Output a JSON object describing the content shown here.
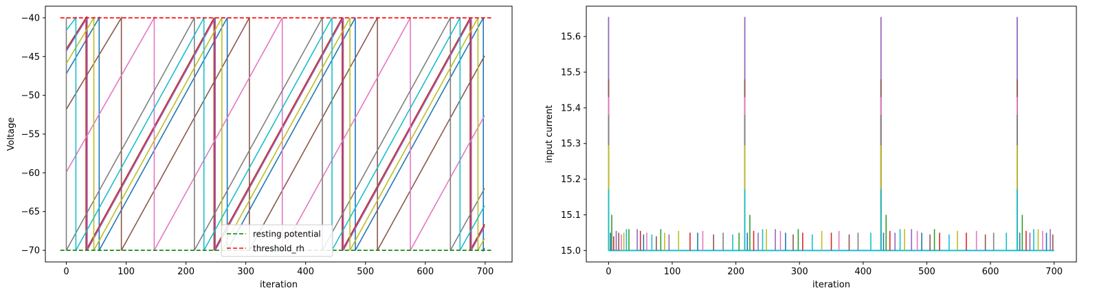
{
  "chart_data": [
    {
      "type": "line",
      "xlabel": "iteration",
      "ylabel": "Voltage",
      "xlim": [
        -35,
        745
      ],
      "ylim": [
        -71.5,
        -38.5
      ],
      "xticks": [
        0,
        100,
        200,
        300,
        400,
        500,
        600,
        700
      ],
      "yticks": [
        -70,
        -65,
        -60,
        -55,
        -50,
        -45,
        -40
      ],
      "ytick_labels": [
        "−70",
        "−65",
        "−60",
        "−55",
        "−50",
        "−45",
        "−40"
      ],
      "legend": {
        "placement": "bottom-center",
        "entries": [
          {
            "label": "resting potential",
            "color": "#008000",
            "style": "dashed"
          },
          {
            "label": "threshold_rh",
            "color": "#ff0000",
            "style": "dashed"
          }
        ]
      },
      "reference_lines": [
        {
          "name": "resting potential",
          "y": -70,
          "x": [
            -10,
            710
          ],
          "color": "#008000"
        },
        {
          "name": "threshold_rh",
          "y": -40,
          "x": [
            -10,
            710
          ],
          "color": "#ff0000"
        }
      ],
      "series": [
        {
          "color": "#1f77b4",
          "start_v": -47.2,
          "period": 214,
          "reset_iters": [
            55,
            269,
            483,
            697
          ]
        },
        {
          "color": "#ff7f0e",
          "start_v": -44.2,
          "period": 214,
          "reset_iters": [
            34,
            248,
            462,
            676
          ]
        },
        {
          "color": "#2ca02c",
          "start_v": -44.0,
          "period": 214,
          "reset_iters": [
            33,
            247,
            461,
            675
          ]
        },
        {
          "color": "#d62728",
          "start_v": -44.1,
          "period": 214,
          "reset_iters": [
            33,
            247,
            461,
            675
          ]
        },
        {
          "color": "#9467bd",
          "start_v": -44.3,
          "period": 214,
          "reset_iters": [
            35,
            249,
            463,
            677
          ]
        },
        {
          "color": "#8c564b",
          "start_v": -51.8,
          "period": 214,
          "reset_iters": [
            92,
            306,
            520
          ]
        },
        {
          "color": "#e377c2",
          "start_v": -59.9,
          "period": 214,
          "reset_iters": [
            147,
            361,
            575
          ]
        },
        {
          "color": "#7f7f7f",
          "start_v": -70.0,
          "period": 214,
          "reset_iters": [
            0,
            214,
            428,
            642
          ]
        },
        {
          "color": "#bcbd22",
          "start_v": -45.9,
          "period": 214,
          "reset_iters": [
            46,
            260,
            474,
            688
          ]
        },
        {
          "color": "#17becf",
          "start_v": -41.6,
          "period": 214,
          "reset_iters": [
            16,
            230,
            444,
            658
          ]
        }
      ]
    },
    {
      "type": "line",
      "xlabel": "iteration",
      "ylabel": "input current",
      "xlim": [
        -35,
        735
      ],
      "ylim": [
        14.968,
        15.685
      ],
      "xticks": [
        0,
        100,
        200,
        300,
        400,
        500,
        600,
        700
      ],
      "yticks": [
        15.0,
        15.1,
        15.2,
        15.3,
        15.4,
        15.5,
        15.6
      ],
      "ytick_labels": [
        "15.0",
        "15.1",
        "15.2",
        "15.3",
        "15.4",
        "15.5",
        "15.6"
      ],
      "baseline": 15.0,
      "large_spikes": [
        {
          "x": 0,
          "levels": [
            {
              "color": "#9467bd",
              "y": 15.655
            },
            {
              "color": "#8c564b",
              "y": 15.48
            },
            {
              "color": "#e377c2",
              "y": 15.43
            },
            {
              "color": "#7f7f7f",
              "y": 15.38
            },
            {
              "color": "#bcbd22",
              "y": 15.295
            },
            {
              "color": "#17becf",
              "y": 15.172
            }
          ]
        },
        {
          "x": 214,
          "levels": [
            {
              "color": "#9467bd",
              "y": 15.655
            },
            {
              "color": "#8c564b",
              "y": 15.48
            },
            {
              "color": "#e377c2",
              "y": 15.43
            },
            {
              "color": "#7f7f7f",
              "y": 15.38
            },
            {
              "color": "#bcbd22",
              "y": 15.295
            },
            {
              "color": "#17becf",
              "y": 15.172
            }
          ]
        },
        {
          "x": 428,
          "levels": [
            {
              "color": "#9467bd",
              "y": 15.655
            },
            {
              "color": "#8c564b",
              "y": 15.48
            },
            {
              "color": "#e377c2",
              "y": 15.43
            },
            {
              "color": "#7f7f7f",
              "y": 15.38
            },
            {
              "color": "#bcbd22",
              "y": 15.295
            },
            {
              "color": "#17becf",
              "y": 15.172
            }
          ]
        },
        {
          "x": 642,
          "levels": [
            {
              "color": "#9467bd",
              "y": 15.655
            },
            {
              "color": "#8c564b",
              "y": 15.48
            },
            {
              "color": "#e377c2",
              "y": 15.43
            },
            {
              "color": "#7f7f7f",
              "y": 15.38
            },
            {
              "color": "#bcbd22",
              "y": 15.295
            },
            {
              "color": "#17becf",
              "y": 15.172
            }
          ]
        }
      ],
      "small_spikes": [
        {
          "x": 3,
          "y": 15.05,
          "color": "#1f77b4"
        },
        {
          "x": 5,
          "y": 15.1,
          "color": "#2ca02c"
        },
        {
          "x": 8,
          "y": 15.04,
          "color": "#d62728"
        },
        {
          "x": 12,
          "y": 15.055,
          "color": "#9467bd"
        },
        {
          "x": 16,
          "y": 15.05,
          "color": "#8c564b"
        },
        {
          "x": 20,
          "y": 15.045,
          "color": "#e377c2"
        },
        {
          "x": 24,
          "y": 15.05,
          "color": "#bcbd22"
        },
        {
          "x": 28,
          "y": 15.06,
          "color": "#17becf"
        },
        {
          "x": 32,
          "y": 15.06,
          "color": "#2ca02c"
        },
        {
          "x": 45,
          "y": 15.06,
          "color": "#9467bd"
        },
        {
          "x": 50,
          "y": 15.055,
          "color": "#d62728"
        },
        {
          "x": 55,
          "y": 15.045,
          "color": "#1f77b4"
        },
        {
          "x": 60,
          "y": 15.05,
          "color": "#e377c2"
        },
        {
          "x": 68,
          "y": 15.045,
          "color": "#17becf"
        },
        {
          "x": 75,
          "y": 15.04,
          "color": "#8c564b"
        },
        {
          "x": 82,
          "y": 15.06,
          "color": "#2ca02c"
        },
        {
          "x": 88,
          "y": 15.05,
          "color": "#bcbd22"
        },
        {
          "x": 95,
          "y": 15.045,
          "color": "#9467bd"
        },
        {
          "x": 110,
          "y": 15.055,
          "color": "#bcbd22"
        },
        {
          "x": 128,
          "y": 15.05,
          "color": "#d62728"
        },
        {
          "x": 140,
          "y": 15.05,
          "color": "#1f77b4"
        },
        {
          "x": 148,
          "y": 15.055,
          "color": "#e377c2"
        },
        {
          "x": 165,
          "y": 15.045,
          "color": "#8c564b"
        },
        {
          "x": 180,
          "y": 15.05,
          "color": "#7f7f7f"
        },
        {
          "x": 195,
          "y": 15.045,
          "color": "#17becf"
        },
        {
          "x": 205,
          "y": 15.05,
          "color": "#2ca02c"
        },
        {
          "x": 218,
          "y": 15.05,
          "color": "#1f77b4"
        },
        {
          "x": 222,
          "y": 15.1,
          "color": "#2ca02c"
        },
        {
          "x": 228,
          "y": 15.055,
          "color": "#d62728"
        },
        {
          "x": 235,
          "y": 15.05,
          "color": "#9467bd"
        },
        {
          "x": 242,
          "y": 15.06,
          "color": "#17becf"
        },
        {
          "x": 248,
          "y": 15.06,
          "color": "#bcbd22"
        },
        {
          "x": 262,
          "y": 15.06,
          "color": "#9467bd"
        },
        {
          "x": 270,
          "y": 15.055,
          "color": "#e377c2"
        },
        {
          "x": 278,
          "y": 15.05,
          "color": "#1f77b4"
        },
        {
          "x": 290,
          "y": 15.045,
          "color": "#8c564b"
        },
        {
          "x": 298,
          "y": 15.06,
          "color": "#2ca02c"
        },
        {
          "x": 305,
          "y": 15.05,
          "color": "#d62728"
        },
        {
          "x": 320,
          "y": 15.045,
          "color": "#17becf"
        },
        {
          "x": 335,
          "y": 15.055,
          "color": "#bcbd22"
        },
        {
          "x": 350,
          "y": 15.05,
          "color": "#d62728"
        },
        {
          "x": 362,
          "y": 15.055,
          "color": "#e377c2"
        },
        {
          "x": 378,
          "y": 15.045,
          "color": "#8c564b"
        },
        {
          "x": 392,
          "y": 15.05,
          "color": "#7f7f7f"
        },
        {
          "x": 412,
          "y": 15.05,
          "color": "#17becf"
        },
        {
          "x": 432,
          "y": 15.05,
          "color": "#1f77b4"
        },
        {
          "x": 436,
          "y": 15.1,
          "color": "#2ca02c"
        },
        {
          "x": 442,
          "y": 15.055,
          "color": "#d62728"
        },
        {
          "x": 450,
          "y": 15.05,
          "color": "#9467bd"
        },
        {
          "x": 458,
          "y": 15.06,
          "color": "#17becf"
        },
        {
          "x": 465,
          "y": 15.06,
          "color": "#bcbd22"
        },
        {
          "x": 476,
          "y": 15.06,
          "color": "#9467bd"
        },
        {
          "x": 485,
          "y": 15.055,
          "color": "#e377c2"
        },
        {
          "x": 492,
          "y": 15.05,
          "color": "#1f77b4"
        },
        {
          "x": 505,
          "y": 15.045,
          "color": "#8c564b"
        },
        {
          "x": 512,
          "y": 15.06,
          "color": "#2ca02c"
        },
        {
          "x": 520,
          "y": 15.05,
          "color": "#d62728"
        },
        {
          "x": 535,
          "y": 15.045,
          "color": "#17becf"
        },
        {
          "x": 548,
          "y": 15.055,
          "color": "#bcbd22"
        },
        {
          "x": 562,
          "y": 15.05,
          "color": "#d62728"
        },
        {
          "x": 578,
          "y": 15.055,
          "color": "#e377c2"
        },
        {
          "x": 592,
          "y": 15.045,
          "color": "#8c564b"
        },
        {
          "x": 605,
          "y": 15.05,
          "color": "#7f7f7f"
        },
        {
          "x": 625,
          "y": 15.05,
          "color": "#17becf"
        },
        {
          "x": 646,
          "y": 15.05,
          "color": "#1f77b4"
        },
        {
          "x": 650,
          "y": 15.1,
          "color": "#2ca02c"
        },
        {
          "x": 656,
          "y": 15.055,
          "color": "#d62728"
        },
        {
          "x": 662,
          "y": 15.05,
          "color": "#9467bd"
        },
        {
          "x": 668,
          "y": 15.06,
          "color": "#17becf"
        },
        {
          "x": 675,
          "y": 15.06,
          "color": "#bcbd22"
        },
        {
          "x": 682,
          "y": 15.055,
          "color": "#e377c2"
        },
        {
          "x": 688,
          "y": 15.05,
          "color": "#1f77b4"
        },
        {
          "x": 694,
          "y": 15.06,
          "color": "#9467bd"
        },
        {
          "x": 698,
          "y": 15.045,
          "color": "#8c564b"
        }
      ]
    }
  ]
}
